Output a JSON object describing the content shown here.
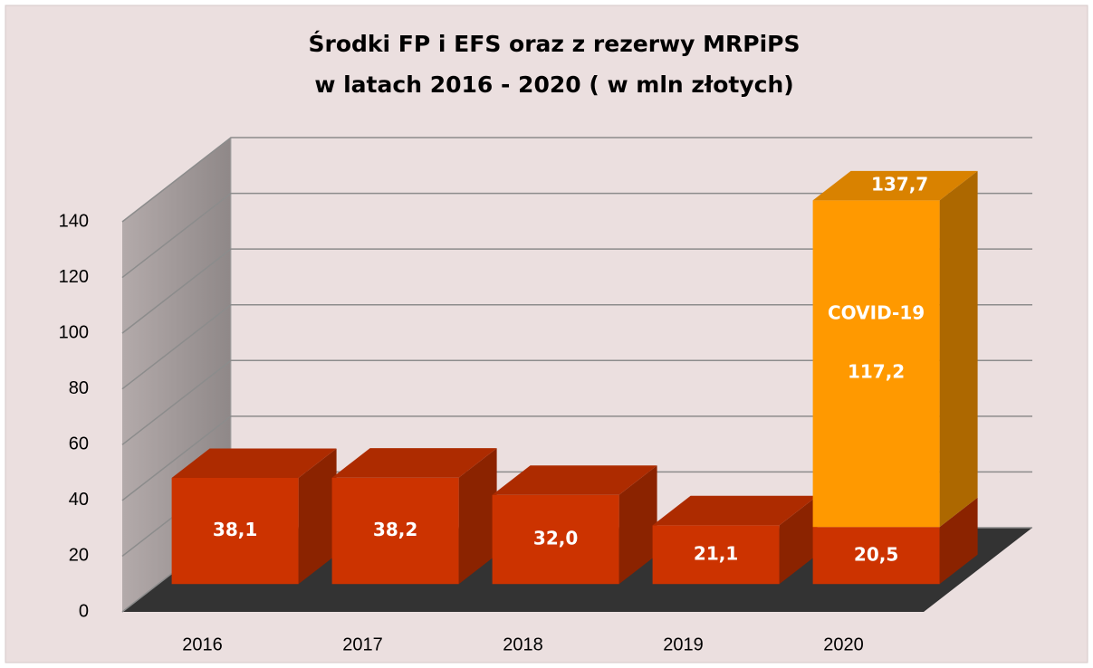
{
  "chart_data": {
    "type": "bar3d-stacked",
    "title": [
      "Środki FP i EFS oraz z rezerwy MRPiPS",
      "w latach 2016 - 2020 ( w mln złotych)"
    ],
    "categories": [
      "2016",
      "2017",
      "2018",
      "2019",
      "2020"
    ],
    "series": [
      {
        "color": "#cc3300",
        "values": [
          38.1,
          38.2,
          32.0,
          21.1,
          20.5
        ],
        "value_labels": [
          "38,1",
          "38,2",
          "32,0",
          "21,1",
          "20,5"
        ]
      },
      {
        "name": "COVID-19",
        "color": "#ff9900",
        "values": [
          null,
          null,
          null,
          null,
          117.2
        ],
        "value_labels": [
          null,
          null,
          null,
          null,
          "117,2"
        ]
      }
    ],
    "totals": [
      null,
      null,
      null,
      null,
      137.7
    ],
    "total_labels": [
      null,
      null,
      null,
      null,
      "137,7"
    ],
    "ylim": [
      0,
      140
    ],
    "yticks": [
      0,
      20,
      40,
      60,
      80,
      100,
      120,
      140
    ],
    "grid": true
  }
}
